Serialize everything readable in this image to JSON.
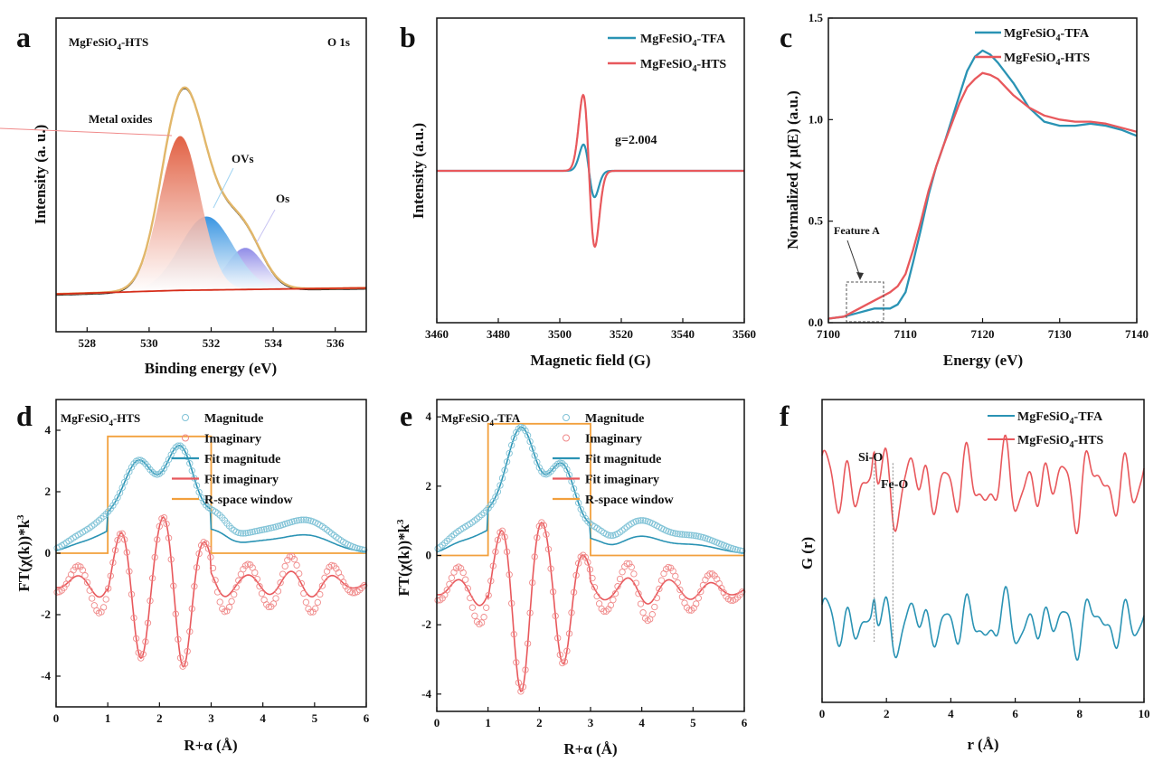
{
  "colors": {
    "teal": "#2a93b4",
    "red": "#e8585c",
    "pink": "#f08a8a",
    "orange": "#f2a03d",
    "gold": "#e2b76a",
    "darkred": "#d62d1a",
    "oxide": "#e26a4a",
    "ovs": "#3d9fe3",
    "os": "#8f8ee8",
    "black": "#111111"
  },
  "chart_data": [
    {
      "panel": "a",
      "type": "area",
      "title": "MgFeSiO4-HTS",
      "title_sub": "4",
      "corner_label": "O 1s",
      "xlabel": "Binding energy (eV)",
      "ylabel": "Intensity  (a. u.)",
      "xlim": [
        527,
        537
      ],
      "ylim": [
        0,
        1.1
      ],
      "xticks": [
        528,
        530,
        532,
        534,
        536
      ],
      "annotations": [
        "Metal oxides",
        "OVs",
        "Os"
      ],
      "series": [
        {
          "name": "Metal oxides",
          "center": 531.0,
          "height": 0.63,
          "sigma": 0.65
        },
        {
          "name": "OVs",
          "center": 531.85,
          "height": 0.3,
          "sigma": 0.85
        },
        {
          "name": "Os",
          "center": 533.1,
          "height": 0.17,
          "sigma": 0.6
        },
        {
          "name": "Envelope",
          "peak": 531.1,
          "max": 0.98
        },
        {
          "name": "Background",
          "values": [
            [
              527,
              0.01
            ],
            [
              531,
              0.025
            ],
            [
              537,
              0.035
            ]
          ]
        }
      ]
    },
    {
      "panel": "b",
      "type": "line",
      "xlabel": "Magnetic field (G)",
      "ylabel": "Intensity (a.u.)",
      "xlim": [
        3460,
        3560
      ],
      "ylim": [
        -1,
        1
      ],
      "xticks": [
        3460,
        3480,
        3500,
        3520,
        3540,
        3560
      ],
      "annotations": [
        "g=2.004"
      ],
      "legend": [
        "MgFeSiO4-TFA",
        "MgFeSiO4-HTS"
      ],
      "series": [
        {
          "name": "MgFeSiO4-TFA",
          "center": 3509.5,
          "halfwidth": 1.8,
          "amplitude": 0.34
        },
        {
          "name": "MgFeSiO4-HTS",
          "center": 3509.5,
          "halfwidth": 1.9,
          "amplitude": 0.98
        }
      ]
    },
    {
      "panel": "c",
      "type": "line",
      "xlabel": "Energy (eV)",
      "ylabel": "Normalized χ μ(E) (a.u.)",
      "xlim": [
        7100,
        7140
      ],
      "ylim": [
        0,
        1.5
      ],
      "xticks": [
        7100,
        7110,
        7120,
        7130,
        7140
      ],
      "yticks": [
        0.0,
        0.5,
        1.0,
        1.5
      ],
      "annotations": [
        "Feature A"
      ],
      "legend": [
        "MgFeSiO4-TFA",
        "MgFeSiO4-HTS"
      ],
      "series": [
        {
          "name": "MgFeSiO4-TFA",
          "x": [
            7100,
            7102,
            7104,
            7105,
            7106,
            7107,
            7108,
            7109,
            7110,
            7111,
            7112,
            7113,
            7114,
            7115,
            7116,
            7117,
            7118,
            7119,
            7120,
            7121,
            7122,
            7124,
            7126,
            7128,
            7130,
            7132,
            7134,
            7136,
            7138,
            7140
          ],
          "y": [
            0.02,
            0.03,
            0.05,
            0.06,
            0.07,
            0.07,
            0.07,
            0.09,
            0.15,
            0.3,
            0.46,
            0.63,
            0.77,
            0.88,
            1.0,
            1.12,
            1.24,
            1.31,
            1.34,
            1.32,
            1.28,
            1.18,
            1.06,
            0.99,
            0.97,
            0.97,
            0.98,
            0.97,
            0.95,
            0.92
          ]
        },
        {
          "name": "MgFeSiO4-HTS",
          "x": [
            7100,
            7102,
            7103,
            7104,
            7105,
            7106,
            7107,
            7108,
            7109,
            7110,
            7111,
            7112,
            7113,
            7114,
            7115,
            7116,
            7117,
            7118,
            7119,
            7120,
            7121,
            7122,
            7124,
            7126,
            7128,
            7130,
            7132,
            7134,
            7136,
            7138,
            7140
          ],
          "y": [
            0.02,
            0.03,
            0.05,
            0.07,
            0.09,
            0.11,
            0.13,
            0.15,
            0.18,
            0.24,
            0.36,
            0.5,
            0.65,
            0.77,
            0.88,
            0.98,
            1.08,
            1.16,
            1.2,
            1.23,
            1.22,
            1.2,
            1.12,
            1.06,
            1.02,
            1.0,
            0.99,
            0.99,
            0.98,
            0.96,
            0.94
          ]
        }
      ]
    },
    {
      "panel": "d",
      "type": "line",
      "title": "MgFeSiO4-HTS",
      "title_sub": "4",
      "xlabel": "R+α (Å)",
      "ylabel": "FT(χ(k))*k³",
      "xlim": [
        0,
        6
      ],
      "ylim": [
        -5,
        5
      ],
      "xticks": [
        0,
        1,
        2,
        3,
        4,
        5,
        6
      ],
      "yticks": [
        -4,
        -2,
        0,
        2,
        4
      ],
      "legend": [
        "Magnitude",
        "Imaginary",
        "Fit magnitude",
        "Fit imaginary",
        "R-space window"
      ],
      "window": {
        "from": 1.0,
        "to": 3.0,
        "height": 3.8
      },
      "peaks": [
        [
          0.4,
          0.35,
          0.25
        ],
        [
          0.95,
          0.9,
          0.3
        ],
        [
          1.6,
          2.8,
          0.3
        ],
        [
          2.4,
          3.35,
          0.3
        ],
        [
          3.1,
          0.85,
          0.22
        ],
        [
          3.9,
          0.6,
          0.55
        ],
        [
          4.9,
          0.9,
          0.45
        ]
      ],
      "imaginary_freq": 7.6,
      "imaginary_offset": -1.0
    },
    {
      "panel": "e",
      "type": "line",
      "title": "MgFeSiO4-TFA",
      "title_sub": "4",
      "xlabel": "R+α (Å)",
      "ylabel": "FT(χ(k))*k³",
      "xlim": [
        0,
        6
      ],
      "ylim": [
        -4.5,
        4.5
      ],
      "xticks": [
        0,
        1,
        2,
        3,
        4,
        5,
        6
      ],
      "yticks": [
        -4,
        -2,
        0,
        2,
        4
      ],
      "legend": [
        "Magnitude",
        "Imaginary",
        "Fit magnitude",
        "Fit imaginary",
        "R-space window"
      ],
      "window": {
        "from": 1.0,
        "to": 3.0,
        "height": 3.8
      },
      "peaks": [
        [
          0.4,
          0.45,
          0.25
        ],
        [
          0.95,
          0.95,
          0.3
        ],
        [
          1.65,
          3.55,
          0.3
        ],
        [
          2.45,
          2.5,
          0.28
        ],
        [
          3.1,
          0.5,
          0.2
        ],
        [
          3.95,
          0.9,
          0.4
        ],
        [
          5.0,
          0.5,
          0.5
        ]
      ],
      "imaginary_freq": 7.6,
      "imaginary_offset": -1.0
    },
    {
      "panel": "f",
      "type": "line",
      "xlabel": "r (Å)",
      "ylabel": "G (r)",
      "xlim": [
        0,
        10
      ],
      "ylim": [
        0,
        1
      ],
      "xticks": [
        0,
        2,
        4,
        6,
        8,
        10
      ],
      "annotations": [
        "Si-O",
        "Fe-O"
      ],
      "markers": [
        1.62,
        2.2
      ],
      "legend": [
        "MgFeSiO4-TFA",
        "MgFeSiO4-HTS"
      ],
      "series": [
        {
          "name": "MgFeSiO4-TFA",
          "baseline": 0.26
        },
        {
          "name": "MgFeSiO4-HTS",
          "baseline": 0.72
        }
      ]
    }
  ]
}
